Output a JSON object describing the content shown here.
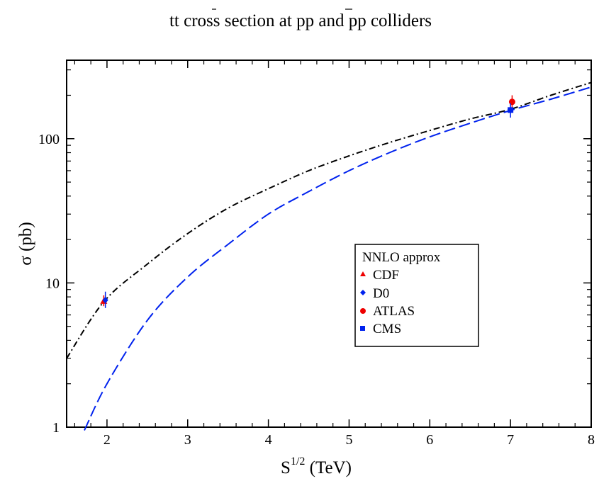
{
  "chart_data": {
    "type": "line",
    "title_parts": [
      "t",
      "t",
      " cross section at ",
      "p",
      "p",
      " and pp colliders"
    ],
    "xlabel": {
      "base": "S",
      "sup": "1/2",
      "rest": " (TeV)"
    },
    "ylabel": {
      "symbol": "σ",
      "rest": " (pb)"
    },
    "xlim": [
      1.5,
      8
    ],
    "ylim": [
      1,
      350
    ],
    "yscale": "log",
    "x_ticks": [
      2,
      3,
      4,
      5,
      6,
      7,
      8
    ],
    "x_tick_labels": [
      "2",
      "3",
      "4",
      "5",
      "6",
      "7",
      "8"
    ],
    "y_ticks": [
      1,
      10,
      100
    ],
    "y_tick_labels": [
      "1",
      "10",
      "100"
    ],
    "legend_position": "center-right",
    "series": [
      {
        "name": "NNLO approx",
        "kind": "curve",
        "style": "dash-dot",
        "color": "#000000",
        "x": [
          1.5,
          1.96,
          2.5,
          3,
          3.5,
          4,
          4.5,
          5,
          5.5,
          6,
          6.5,
          7,
          7.5,
          8
        ],
        "y": [
          3.0,
          7.4,
          13.5,
          22,
          33,
          45,
          60,
          76,
          94,
          114,
          137,
          160,
          200,
          245
        ]
      },
      {
        "kind": "curve",
        "style": "dashed",
        "color": "#0022ee",
        "x": [
          1.72,
          2,
          2.5,
          3,
          3.5,
          4,
          4.5,
          5,
          5.5,
          6,
          6.5,
          7,
          7.5,
          8
        ],
        "y": [
          0.95,
          2.0,
          5.5,
          11,
          18.5,
          30,
          43,
          60,
          80,
          103,
          128,
          157,
          188,
          228
        ]
      },
      {
        "name": "CDF",
        "kind": "point",
        "marker": "triangle",
        "color": "#ee0000",
        "x": 1.96,
        "y": 7.5,
        "err": [
          6.9,
          8.2
        ]
      },
      {
        "name": "D0",
        "kind": "point",
        "marker": "diamond",
        "color": "#0022ee",
        "x": 1.98,
        "y": 7.6,
        "err": [
          6.7,
          8.7
        ]
      },
      {
        "name": "ATLAS",
        "kind": "point",
        "marker": "circle",
        "color": "#ee0000",
        "x": 7.02,
        "y": 180,
        "err": [
          160,
          200
        ]
      },
      {
        "name": "CMS",
        "kind": "point",
        "marker": "square",
        "color": "#0022ee",
        "x": 7.0,
        "y": 158,
        "err": [
          140,
          176
        ]
      }
    ]
  }
}
